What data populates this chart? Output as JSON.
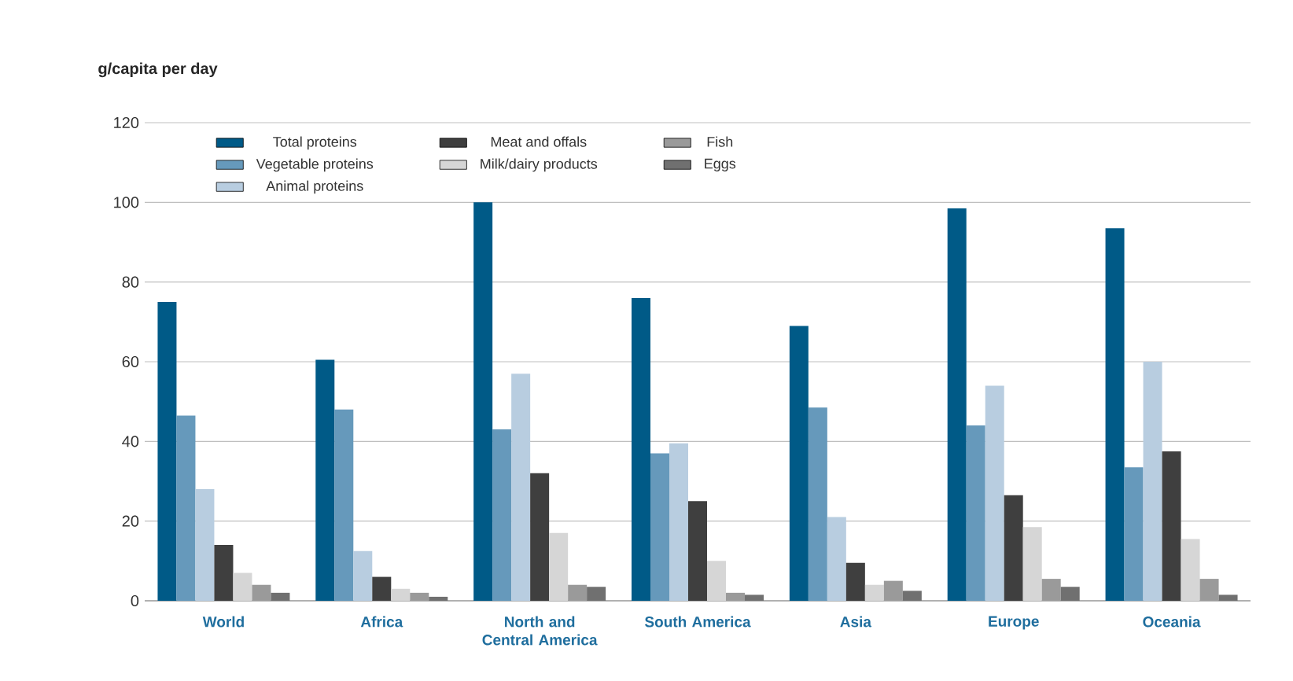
{
  "chart_data": {
    "type": "bar",
    "ylabel": "g/capita per day",
    "categories": [
      "World",
      "Africa",
      "North and Central America",
      "South America",
      "Asia",
      "Europe",
      "Oceania"
    ],
    "series": [
      {
        "name": "Total proteins",
        "color": "#005a87",
        "values": [
          75,
          60.5,
          100,
          76,
          69,
          98.5,
          93.5
        ]
      },
      {
        "name": "Vegetable proteins",
        "color": "#6699bb",
        "values": [
          46.5,
          48,
          43,
          37,
          48.5,
          44,
          33.5
        ]
      },
      {
        "name": "Animal proteins",
        "color": "#b8cde0",
        "values": [
          28,
          12.5,
          57,
          39.5,
          21,
          54,
          60
        ]
      },
      {
        "name": "Meat and offals",
        "color": "#3f3f3f",
        "values": [
          14,
          6,
          32,
          25,
          9.5,
          26.5,
          37.5
        ]
      },
      {
        "name": "Milk/dairy products",
        "color": "#d6d6d6",
        "values": [
          7,
          3,
          17,
          10,
          4,
          18.5,
          15.5
        ]
      },
      {
        "name": "Fish",
        "color": "#9a9a9a",
        "values": [
          4,
          2,
          4,
          2,
          5,
          5.5,
          5.5
        ]
      },
      {
        "name": "Eggs",
        "color": "#707070",
        "values": [
          2,
          1,
          3.5,
          1.5,
          2.5,
          3.5,
          1.5
        ]
      }
    ],
    "ylim": [
      0,
      120
    ],
    "yticks": [
      0,
      20,
      40,
      60,
      80,
      100,
      120
    ],
    "grid": "y",
    "legend": "top"
  }
}
